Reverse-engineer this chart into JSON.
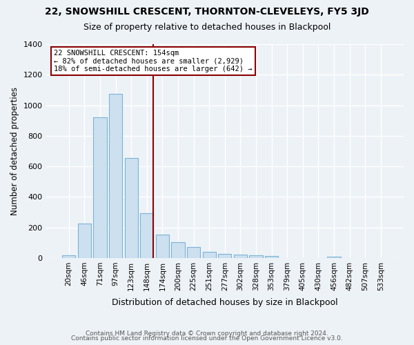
{
  "title": "22, SNOWSHILL CRESCENT, THORNTON-CLEVELEYS, FY5 3JD",
  "subtitle": "Size of property relative to detached houses in Blackpool",
  "xlabel": "Distribution of detached houses by size in Blackpool",
  "ylabel": "Number of detached properties",
  "bar_labels": [
    "20sqm",
    "46sqm",
    "71sqm",
    "97sqm",
    "123sqm",
    "148sqm",
    "174sqm",
    "200sqm",
    "225sqm",
    "251sqm",
    "277sqm",
    "302sqm",
    "328sqm",
    "353sqm",
    "379sqm",
    "405sqm",
    "430sqm",
    "456sqm",
    "482sqm",
    "507sqm",
    "533sqm"
  ],
  "bar_values": [
    18,
    225,
    920,
    1075,
    655,
    295,
    155,
    105,
    72,
    38,
    25,
    22,
    18,
    12,
    0,
    0,
    0,
    8,
    0,
    0,
    0
  ],
  "bar_color": "#cce0f0",
  "bar_edgecolor": "#7ab3d4",
  "vline_x": 5.43,
  "vline_color": "#8b0000",
  "annotation_line1": "22 SNOWSHILL CRESCENT: 154sqm",
  "annotation_line2": "← 82% of detached houses are smaller (2,929)",
  "annotation_line3": "18% of semi-detached houses are larger (642) →",
  "annotation_box_facecolor": "#ffffff",
  "annotation_box_edgecolor": "#8b0000",
  "ylim": [
    0,
    1400
  ],
  "yticks": [
    0,
    200,
    400,
    600,
    800,
    1000,
    1200,
    1400
  ],
  "footer1": "Contains HM Land Registry data © Crown copyright and database right 2024.",
  "footer2": "Contains public sector information licensed under the Open Government Licence v3.0.",
  "bg_color": "#edf2f7",
  "plot_bg_color": "#edf2f7"
}
